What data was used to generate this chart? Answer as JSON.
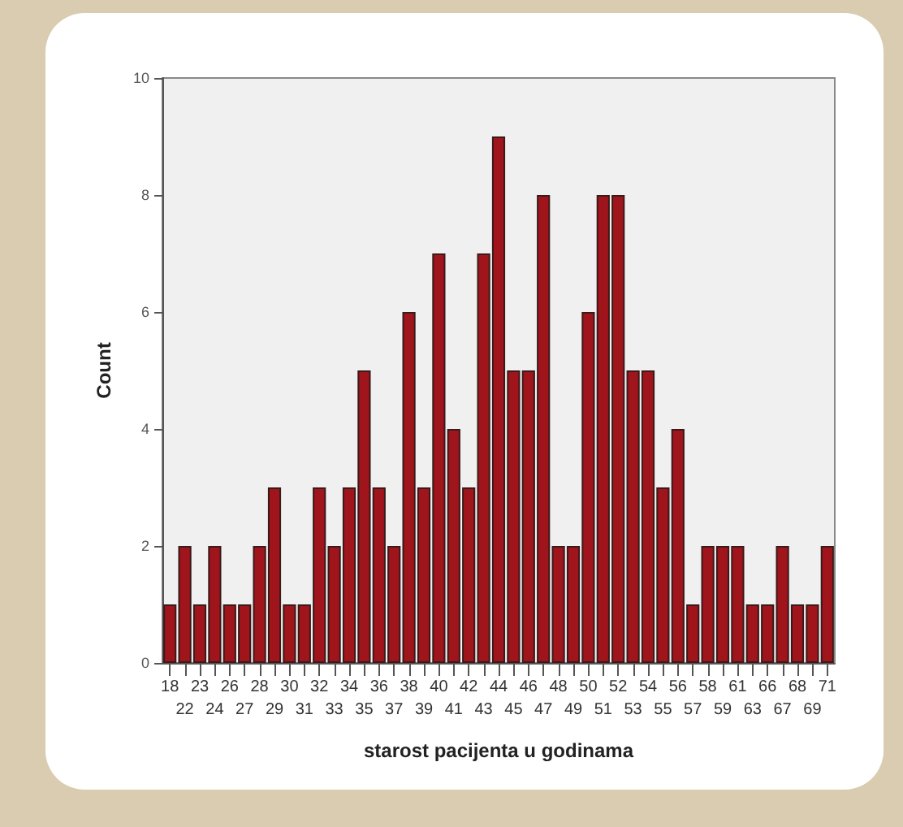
{
  "chart_data": {
    "type": "bar",
    "xlabel": "starost pacijenta u godinama",
    "ylabel": "Count",
    "categories": [
      "18",
      "22",
      "23",
      "24",
      "26",
      "27",
      "28",
      "29",
      "30",
      "31",
      "32",
      "33",
      "34",
      "35",
      "36",
      "37",
      "38",
      "39",
      "40",
      "41",
      "42",
      "43",
      "44",
      "45",
      "46",
      "47",
      "48",
      "49",
      "50",
      "51",
      "52",
      "53",
      "54",
      "55",
      "56",
      "57",
      "58",
      "59",
      "61",
      "63",
      "66",
      "67",
      "68",
      "69",
      "71"
    ],
    "values": [
      1,
      2,
      1,
      2,
      1,
      1,
      2,
      3,
      1,
      1,
      3,
      2,
      3,
      5,
      3,
      2,
      6,
      3,
      7,
      4,
      3,
      7,
      9,
      5,
      5,
      8,
      2,
      2,
      6,
      8,
      8,
      5,
      5,
      3,
      4,
      1,
      2,
      2,
      2,
      1,
      1,
      2,
      1,
      1,
      2
    ],
    "color": "#a0141c",
    "ylim": [
      0,
      10
    ],
    "yticks": [
      0,
      2,
      4,
      6,
      8,
      10
    ],
    "grid": false
  }
}
